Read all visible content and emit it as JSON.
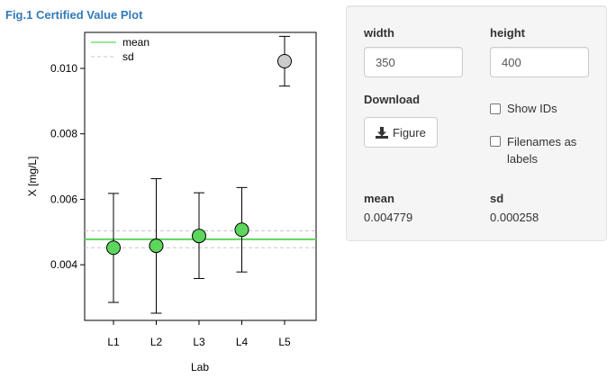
{
  "figure": {
    "title": "Fig.1 Certified Value Plot"
  },
  "chart_data": {
    "type": "scatter",
    "xlabel": "Lab",
    "ylabel": "X [mg/L]",
    "categories": [
      "L1",
      "L2",
      "L3",
      "L4",
      "L5"
    ],
    "ylim": [
      0.0023,
      0.0111
    ],
    "yticks": [
      "0.004",
      "0.006",
      "0.008",
      "0.010"
    ],
    "points": [
      {
        "lab": "L1",
        "mean": 0.00452,
        "lower": 0.00285,
        "upper": 0.00618,
        "color": "#5cd65c"
      },
      {
        "lab": "L2",
        "mean": 0.00458,
        "lower": 0.00252,
        "upper": 0.00663,
        "color": "#5cd65c"
      },
      {
        "lab": "L3",
        "mean": 0.00488,
        "lower": 0.00358,
        "upper": 0.0062,
        "color": "#5cd65c"
      },
      {
        "lab": "L4",
        "mean": 0.00507,
        "lower": 0.00378,
        "upper": 0.00636,
        "color": "#5cd65c"
      },
      {
        "lab": "L5",
        "mean": 0.01022,
        "lower": 0.00946,
        "upper": 0.01098,
        "color": "#cccccc"
      }
    ],
    "mean_line": 0.004779,
    "sd_lines": [
      0.004521,
      0.005037
    ],
    "legend": {
      "position": "top-left",
      "entries": [
        "mean",
        "sd"
      ]
    },
    "colors": {
      "mean": "#5cd65c",
      "sd": "#c8c8c8"
    }
  },
  "panel": {
    "width_label": "width",
    "width_value": "350",
    "height_label": "height",
    "height_value": "400",
    "download_label": "Download",
    "figure_button": "Figure",
    "show_ids_label": "Show IDs",
    "filenames_label_line1": "Filenames as",
    "filenames_label_line2": "labels",
    "mean_label": "mean",
    "mean_value": "0.004779",
    "sd_label": "sd",
    "sd_value": "0.000258"
  }
}
